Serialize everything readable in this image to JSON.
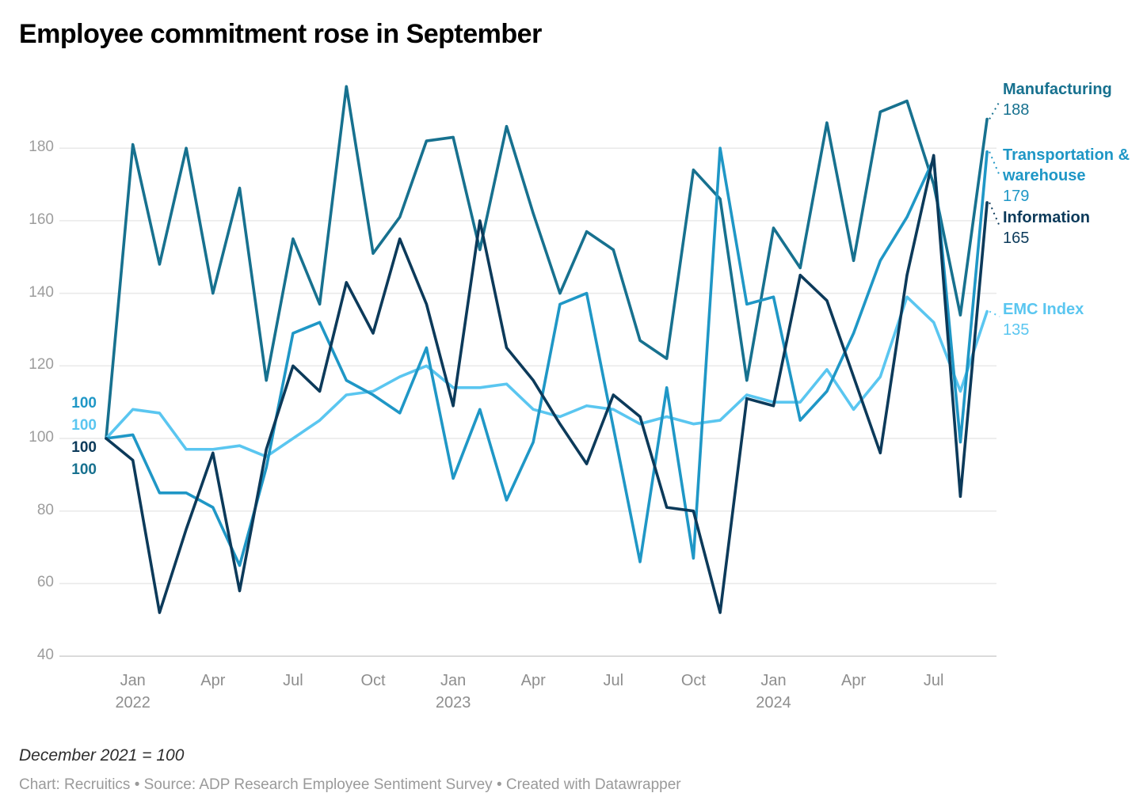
{
  "title": "Employee commitment rose in September",
  "note": "December 2021 = 100",
  "byline": "Chart: Recruitics • Source: ADP Research Employee Sentiment Survey • Created with Datawrapper",
  "chart_data": {
    "type": "line",
    "title": "Employee commitment rose in September",
    "x_unit": "month",
    "x_range": [
      "2021-12",
      "2024-09"
    ],
    "ylim": [
      40,
      198
    ],
    "grid": true,
    "legend_position": "right-direct-labels",
    "y_ticks": [
      180,
      160,
      140,
      120,
      100,
      80,
      60,
      40
    ],
    "x_ticks": [
      {
        "label": "Jan",
        "year": "2022",
        "index": 1
      },
      {
        "label": "Apr",
        "index": 4
      },
      {
        "label": "Jul",
        "index": 7
      },
      {
        "label": "Oct",
        "index": 10
      },
      {
        "label": "Jan",
        "year": "2023",
        "index": 13
      },
      {
        "label": "Apr",
        "index": 16
      },
      {
        "label": "Jul",
        "index": 19
      },
      {
        "label": "Oct",
        "index": 22
      },
      {
        "label": "Jan",
        "year": "2024",
        "index": 25
      },
      {
        "label": "Apr",
        "index": 28
      },
      {
        "label": "Jul",
        "index": 31
      }
    ],
    "baseline_label": "100",
    "start_labels": [
      {
        "text": "100",
        "color": "#1f97c6"
      },
      {
        "text": "100",
        "color": "#5ac6f0"
      },
      {
        "text": "100",
        "color": "#0c3a5a"
      },
      {
        "text": "100",
        "color": "#17718f"
      }
    ],
    "series": [
      {
        "name": "Manufacturing",
        "color": "#17718f",
        "end_value": 188,
        "values": [
          100,
          181,
          148,
          180,
          140,
          169,
          116,
          155,
          137,
          197,
          151,
          161,
          182,
          183,
          152,
          186,
          162,
          140,
          157,
          152,
          127,
          122,
          174,
          166,
          116,
          158,
          147,
          187,
          149,
          190,
          193,
          170,
          134,
          188
        ]
      },
      {
        "name": "Transportation & warehouse",
        "color": "#1f97c6",
        "end_value": 179,
        "values": [
          100,
          101,
          85,
          85,
          81,
          65,
          92,
          129,
          132,
          116,
          112,
          107,
          125,
          89,
          108,
          83,
          99,
          137,
          140,
          103,
          66,
          114,
          67,
          180,
          137,
          139,
          105,
          113,
          129,
          149,
          161,
          177,
          99,
          179
        ]
      },
      {
        "name": "Information",
        "color": "#0c3a5a",
        "end_value": 165,
        "values": [
          100,
          94,
          52,
          75,
          96,
          58,
          97,
          120,
          113,
          143,
          129,
          155,
          137,
          109,
          160,
          125,
          116,
          104,
          93,
          112,
          106,
          81,
          80,
          52,
          111,
          109,
          145,
          138,
          117,
          96,
          145,
          178,
          84,
          165
        ]
      },
      {
        "name": "EMC Index",
        "color": "#5ac6f0",
        "end_value": 135,
        "values": [
          100,
          108,
          107,
          97,
          97,
          98,
          95,
          100,
          105,
          112,
          113,
          117,
          120,
          114,
          114,
          115,
          108,
          106,
          109,
          108,
          104,
          106,
          104,
          105,
          112,
          110,
          110,
          119,
          108,
          117,
          139,
          132,
          113,
          135
        ]
      }
    ]
  }
}
